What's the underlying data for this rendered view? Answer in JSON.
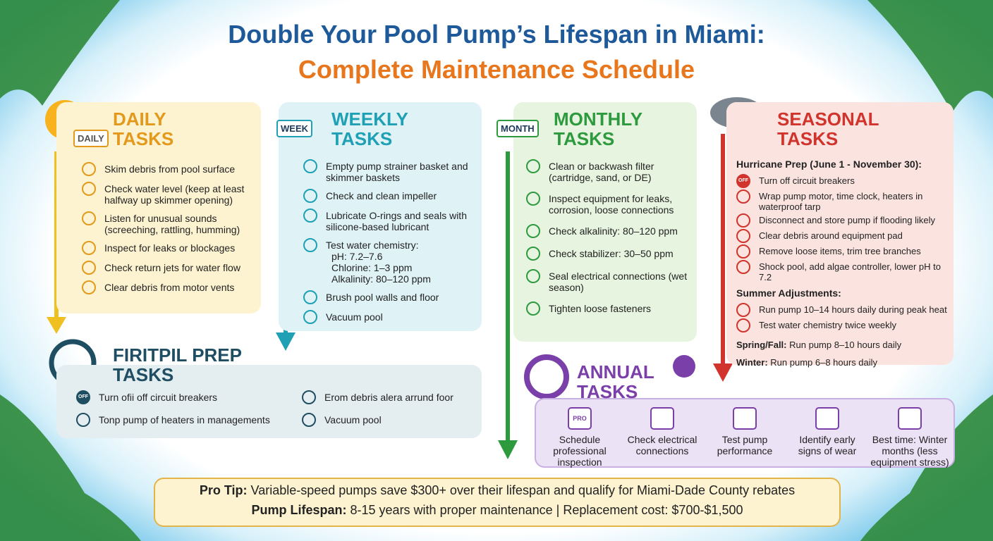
{
  "title": {
    "line1": "Double Your Pool Pump’s Lifespan in Miami:",
    "line2": "Complete Maintenance Schedule"
  },
  "daily": {
    "title": "DAILY TASKS",
    "icon_label": "DAILY",
    "items": [
      {
        "text": "Skim debris from pool surface"
      },
      {
        "text": "Check water level (keep at least halfway up skimmer opening)"
      },
      {
        "text": "Listen for unusual sounds (screeching, rattling, humming)"
      },
      {
        "text": "Inspect for leaks or blockages"
      },
      {
        "text": "Check return jets for water flow"
      },
      {
        "text": "Clear debris from motor vents"
      }
    ]
  },
  "weekly": {
    "title": "WEEKLY TASKS",
    "icon_label": "WEEK",
    "items": [
      {
        "text": "Empty pump strainer basket and skimmer baskets"
      },
      {
        "text": "Check and clean impeller"
      },
      {
        "text": "Lubricate O-rings and seals with silicone-based lubricant"
      },
      {
        "text": "Test water chemistry:",
        "details": [
          "pH: 7.2–7.6",
          "Chlorine: 1–3 ppm",
          "Alkalinity: 80–120 ppm"
        ]
      },
      {
        "text": "Brush pool walls and floor"
      },
      {
        "text": "Vacuum pool"
      }
    ]
  },
  "monthly": {
    "title": "MONTHLY TASKS",
    "icon_label": "MONTH",
    "items": [
      {
        "text": "Clean or backwash filter (cartridge, sand, or DE)"
      },
      {
        "text": "Inspect equipment for leaks, corrosion, loose connections"
      },
      {
        "text": "Check alkalinity: 80–120 ppm"
      },
      {
        "text": "Check stabilizer: 30–50 ppm"
      },
      {
        "text": "Seal electrical connections (wet season)"
      },
      {
        "text": "Tighten loose fasteners"
      }
    ]
  },
  "seasonal": {
    "title": "SEASONAL TASKS",
    "hurricane": {
      "heading": "Hurricane Prep (June 1 - November 30):",
      "items": [
        {
          "text": "Turn off circuit breakers",
          "icon_label": "OFF"
        },
        {
          "text": "Wrap pump motor, time clock, heaters in waterproof tarp"
        },
        {
          "text": "Disconnect and store pump if flooding likely"
        },
        {
          "text": "Clear debris around equipment pad"
        },
        {
          "text": "Remove loose items, trim tree branches"
        },
        {
          "text": "Shock pool, add algae controller, lower pH to 7.2"
        }
      ]
    },
    "summer": {
      "heading": "Summer Adjustments:",
      "items": [
        {
          "text": "Run pump 10–14 hours daily during peak heat"
        },
        {
          "text": "Test water chemistry twice weekly"
        }
      ]
    },
    "notes": [
      {
        "label": "Spring/Fall:",
        "text": "Run pump 8–10 hours daily"
      },
      {
        "label": "Winter:",
        "text": "Run pump 6–8 hours daily"
      }
    ]
  },
  "firitpil": {
    "title": "FIRITPIL PREP TASKS",
    "items": [
      {
        "text": "Turn ofii off circuit breakers",
        "icon_label": "OFF"
      },
      {
        "text": "Erom debris alera arrund foor"
      },
      {
        "text": "Tonp pump of heaters in managements"
      },
      {
        "text": "Vacuum pool"
      }
    ]
  },
  "annual": {
    "title": "ANNUAL TASKS",
    "items": [
      {
        "text": "Schedule professional inspection",
        "icon_label": "PRO"
      },
      {
        "text": "Check electrical connections"
      },
      {
        "text": "Test pump performance"
      },
      {
        "text": "Identify early signs of wear"
      },
      {
        "text": "Best time: Winter months (less equipment stress)"
      }
    ]
  },
  "footer": {
    "tip_label": "Pro Tip:",
    "tip_text": "Variable-speed pumps save $300+ over their lifespan and qualify for Miami-Dade County rebates",
    "lifespan_label": "Pump Lifespan:",
    "lifespan_text": "8-15 years with proper maintenance | Replacement cost: $700-$1,500"
  }
}
